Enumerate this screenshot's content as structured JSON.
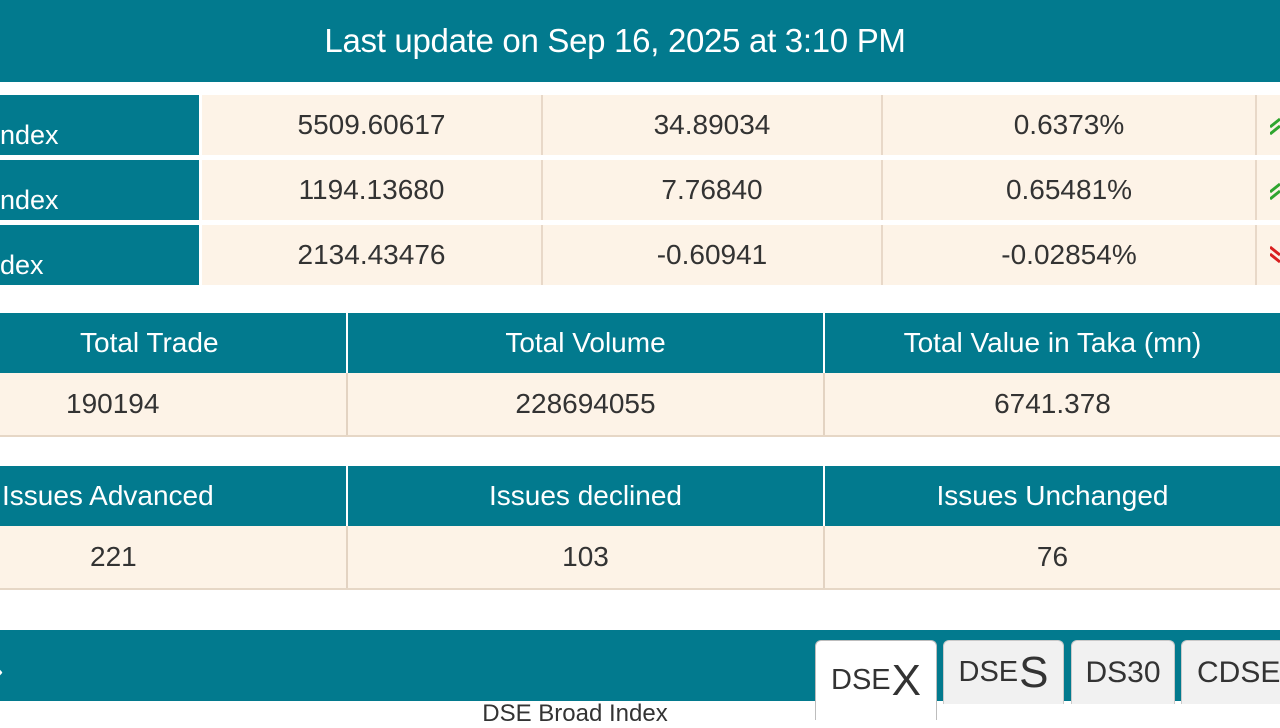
{
  "header": {
    "title": "Last update on Sep 16, 2025 at 3:10 PM"
  },
  "indices": [
    {
      "name": "ndex",
      "value": "5509.60617",
      "change": "34.89034",
      "percent": "0.6373%",
      "direction": "up"
    },
    {
      "name": "ndex",
      "value": "1194.13680",
      "change": "7.76840",
      "percent": "0.65481%",
      "direction": "up"
    },
    {
      "name": "dex",
      "value": "2134.43476",
      "change": "-0.60941",
      "percent": "-0.02854%",
      "direction": "down"
    }
  ],
  "trade_summary": {
    "headers": [
      "Total Trade",
      "Total Volume",
      "Total Value in Taka (mn)"
    ],
    "values": [
      "190194",
      "228694055",
      "6741.378"
    ]
  },
  "issues_summary": {
    "headers": [
      "Issues Advanced",
      "Issues declined",
      "Issues Unchanged"
    ],
    "values": [
      "221",
      "103",
      "76"
    ]
  },
  "tabs": [
    {
      "prefix": "DSE",
      "suffix": "X",
      "active": true
    },
    {
      "prefix": "DSE",
      "suffix": "S",
      "active": false
    },
    {
      "label": "DS30",
      "active": false
    },
    {
      "label": "CDSE",
      "active": false
    }
  ],
  "chart": {
    "caption": "DSE Broad Index"
  },
  "colors": {
    "teal": "#027a8e",
    "cream": "#fdf3e7",
    "up": "#2fa52f",
    "down": "#d92020"
  }
}
